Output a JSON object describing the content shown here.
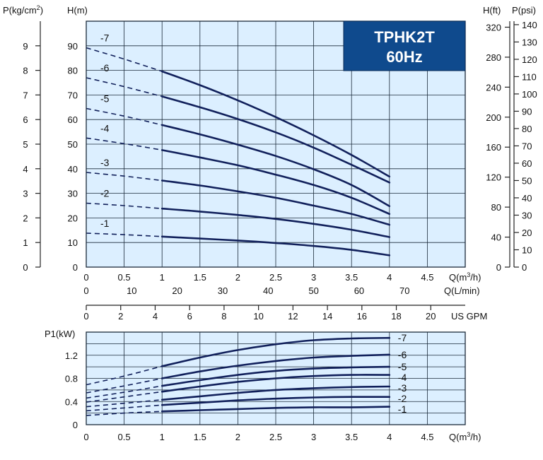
{
  "colors": {
    "plot_background": "#dcefff",
    "grid": "#1b2a3a",
    "curve": "#11205b",
    "badge_background": "#0f4a8d",
    "badge_text": "#ffffff"
  },
  "badge": {
    "model": "TPHK2T",
    "frequency": "60Hz"
  },
  "chart_data": [
    {
      "type": "line",
      "title": "",
      "xlabel": "Q(m³/h)",
      "ylabel": "H(m)",
      "xlim": [
        0,
        5
      ],
      "ylim": [
        0,
        100
      ],
      "x_ticks": [
        "0",
        "0.5",
        "1",
        "1.5",
        "2",
        "2.5",
        "3",
        "3.5",
        "4",
        "4.5"
      ],
      "y_ticks": [
        "0",
        "10",
        "20",
        "30",
        "40",
        "50",
        "60",
        "70",
        "80",
        "90"
      ],
      "extrapolated_range": [
        0,
        1
      ],
      "series": [
        {
          "name": "-1",
          "x": [
            0,
            0.5,
            1,
            1.5,
            2,
            2.5,
            3,
            3.5,
            4
          ],
          "values": [
            13.8,
            13.2,
            12.4,
            11.6,
            10.8,
            9.8,
            8.6,
            7.0,
            4.8
          ]
        },
        {
          "name": "-2",
          "x": [
            0,
            0.5,
            1,
            1.5,
            2,
            2.5,
            3,
            3.5,
            4
          ],
          "values": [
            26.0,
            25.0,
            23.8,
            22.6,
            21.2,
            19.6,
            17.6,
            15.2,
            12.2
          ]
        },
        {
          "name": "-3",
          "x": [
            0,
            0.5,
            1,
            1.5,
            2,
            2.5,
            3,
            3.5,
            4
          ],
          "values": [
            38.5,
            37.0,
            35.2,
            33.2,
            30.8,
            28.2,
            25.0,
            21.6,
            17.2
          ]
        },
        {
          "name": "-4",
          "x": [
            0,
            0.5,
            1,
            1.5,
            2,
            2.5,
            3,
            3.5,
            4
          ],
          "values": [
            52.5,
            50.2,
            47.6,
            44.6,
            41.4,
            37.6,
            33.4,
            28.2,
            21.6
          ]
        },
        {
          "name": "-5",
          "x": [
            0,
            0.5,
            1,
            1.5,
            2,
            2.5,
            3,
            3.5,
            4
          ],
          "values": [
            64.5,
            61.4,
            57.8,
            54.0,
            49.8,
            45.2,
            39.8,
            33.4,
            24.8
          ]
        },
        {
          "name": "-6",
          "x": [
            0,
            0.5,
            1,
            1.5,
            2,
            2.5,
            3,
            3.5,
            4
          ],
          "values": [
            77.0,
            73.4,
            69.4,
            65.0,
            60.2,
            54.8,
            48.6,
            41.6,
            34.4
          ]
        },
        {
          "name": "-7",
          "x": [
            0,
            0.5,
            1,
            1.5,
            2,
            2.5,
            3,
            3.5,
            4
          ],
          "values": [
            89.2,
            84.6,
            79.6,
            74.0,
            67.8,
            61.0,
            53.6,
            45.6,
            36.8
          ]
        }
      ],
      "left_secondary_axis": {
        "label": "P(kg/cm²)",
        "label_base": "P(kg/cm",
        "label_sup": "2",
        "label_close": ")",
        "range": [
          0,
          10
        ],
        "ticks": [
          "0",
          "1",
          "2",
          "3",
          "4",
          "5",
          "6",
          "7",
          "8",
          "9"
        ]
      },
      "right_axis_ft": {
        "label": "H(ft)",
        "range_ft": [
          0,
          328
        ],
        "ticks": [
          "0",
          "40",
          "80",
          "120",
          "160",
          "200",
          "240",
          "280",
          "320"
        ]
      },
      "right_axis_psi": {
        "label": "P(psi)",
        "range_psi": [
          0,
          142
        ],
        "ticks": [
          "0",
          "10",
          "20",
          "30",
          "40",
          "50",
          "60",
          "70",
          "80",
          "90",
          "100",
          "110",
          "120",
          "130",
          "140"
        ]
      },
      "x_axis_lpm": {
        "label": "Q(L/min)",
        "range": [
          0,
          83.33
        ],
        "ticks": [
          "0",
          "10",
          "20",
          "30",
          "40",
          "50",
          "60",
          "70"
        ]
      },
      "x_axis_gpm": {
        "label": "US GPM",
        "range": [
          0,
          22.0
        ],
        "ticks": [
          "0",
          "2",
          "4",
          "6",
          "8",
          "10",
          "12",
          "14",
          "16",
          "18",
          "20"
        ]
      }
    },
    {
      "type": "line",
      "title": "",
      "xlabel": "Q(m³/h)",
      "ylabel": "P1(kW)",
      "xlim": [
        0,
        5
      ],
      "ylim": [
        0,
        1.6
      ],
      "x_ticks": [
        "0",
        "0.5",
        "1",
        "1.5",
        "2",
        "2.5",
        "3",
        "3.5",
        "4",
        "4.5"
      ],
      "y_ticks": [
        "0",
        "0.4",
        "0.8",
        "1.2"
      ],
      "extrapolated_range": [
        0,
        1
      ],
      "series": [
        {
          "name": "-1",
          "x": [
            0,
            0.5,
            1,
            1.5,
            2,
            2.5,
            3,
            3.5,
            4
          ],
          "values": [
            0.16,
            0.2,
            0.23,
            0.25,
            0.27,
            0.29,
            0.3,
            0.3,
            0.31
          ]
        },
        {
          "name": "-2",
          "x": [
            0,
            0.5,
            1,
            1.5,
            2,
            2.5,
            3,
            3.5,
            4
          ],
          "values": [
            0.24,
            0.29,
            0.34,
            0.38,
            0.42,
            0.45,
            0.47,
            0.48,
            0.48
          ]
        },
        {
          "name": "-3",
          "x": [
            0,
            0.5,
            1,
            1.5,
            2,
            2.5,
            3,
            3.5,
            4
          ],
          "values": [
            0.31,
            0.37,
            0.43,
            0.49,
            0.55,
            0.6,
            0.63,
            0.65,
            0.66
          ]
        },
        {
          "name": "-4",
          "x": [
            0,
            0.5,
            1,
            1.5,
            2,
            2.5,
            3,
            3.5,
            4
          ],
          "values": [
            0.39,
            0.48,
            0.57,
            0.66,
            0.74,
            0.8,
            0.84,
            0.86,
            0.86
          ]
        },
        {
          "name": "-5",
          "x": [
            0,
            0.5,
            1,
            1.5,
            2,
            2.5,
            3,
            3.5,
            4
          ],
          "values": [
            0.46,
            0.56,
            0.67,
            0.77,
            0.86,
            0.93,
            0.97,
            0.99,
            1.0
          ]
        },
        {
          "name": "-6",
          "x": [
            0,
            0.5,
            1,
            1.5,
            2,
            2.5,
            3,
            3.5,
            4
          ],
          "values": [
            0.55,
            0.67,
            0.8,
            0.92,
            1.02,
            1.1,
            1.16,
            1.19,
            1.21
          ]
        },
        {
          "name": "-7",
          "x": [
            0,
            0.5,
            1,
            1.5,
            2,
            2.5,
            3,
            3.5,
            4
          ],
          "values": [
            0.69,
            0.84,
            1.01,
            1.16,
            1.29,
            1.39,
            1.46,
            1.49,
            1.5
          ]
        }
      ]
    }
  ]
}
